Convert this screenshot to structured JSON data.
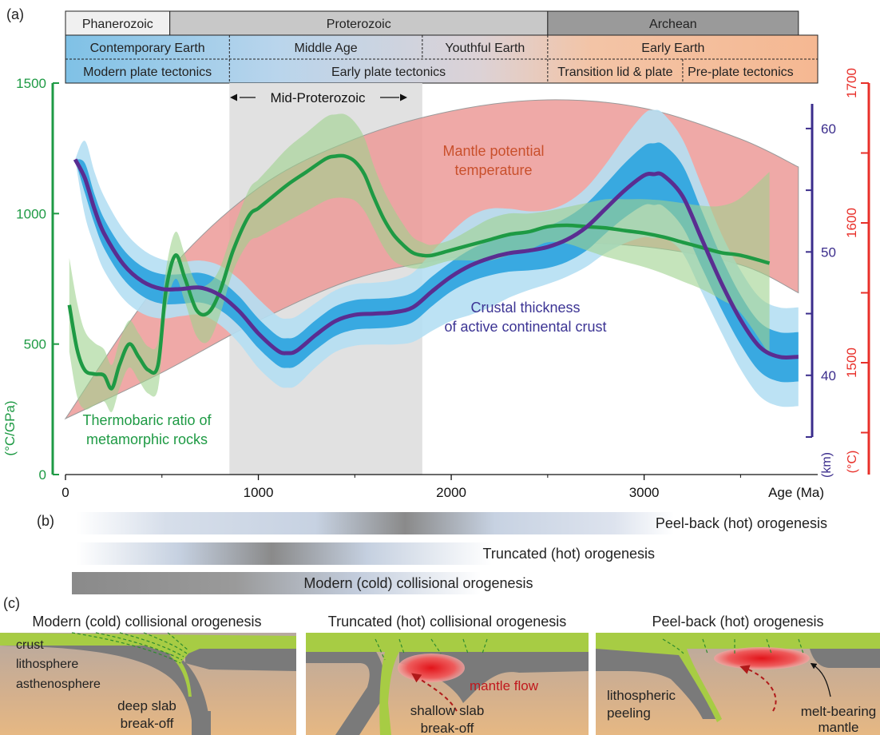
{
  "panel_labels": {
    "a": "(a)",
    "b": "(b)",
    "c": "(c)"
  },
  "colors": {
    "green": "#1e9a44",
    "green_band": "#9fd28e",
    "purple": "#5a2d91",
    "blue": "#2aa3df",
    "blue_light": "#b5dff3",
    "red_band": "#ec9a98",
    "red_axis": "#e8302a",
    "navy_axis": "#3b2d8c",
    "highlight": "#e1e1e1",
    "text_orange": "#c9502c",
    "text_blue": "#3c3494"
  },
  "eons": [
    {
      "name": "Phanerozoic",
      "start": 0,
      "end": 541
    },
    {
      "name": "Proterozoic",
      "start": 541,
      "end": 2500
    },
    {
      "name": "Archean",
      "start": 2500,
      "end": 3800
    }
  ],
  "eras": [
    {
      "name": "Contemporary Earth",
      "start": 0,
      "end": 850
    },
    {
      "name": "Middle Age",
      "start": 850,
      "end": 1850
    },
    {
      "name": "Youthful Earth",
      "start": 1850,
      "end": 2500
    },
    {
      "name": "Early Earth",
      "start": 2500,
      "end": 3800
    }
  ],
  "regimes": [
    {
      "name": "Modern plate tectonics",
      "start": 0,
      "end": 850
    },
    {
      "name": "Early plate tectonics",
      "start": 850,
      "end": 2500
    },
    {
      "name": "Transition lid & plate",
      "start": 2500,
      "end": 3200
    },
    {
      "name": "Pre-plate tectonics",
      "start": 3200,
      "end": 3800
    }
  ],
  "mid_proterozoic_label": "Mid-Proterozoic",
  "annotations": {
    "mantle_line1": "Mantle potential",
    "mantle_line2": "temperature",
    "crust_line1": "Crustal thickness",
    "crust_line2": "of active continental crust",
    "thermo_line1": "Thermobaric ratio of",
    "thermo_line2": "metamorphic rocks"
  },
  "orogenesis_bars": [
    {
      "label": "Peel-back (hot) orogenesis"
    },
    {
      "label": "Truncated (hot) orogenesis"
    },
    {
      "label": "Modern (cold) collisional orogenesis"
    }
  ],
  "panel_c": {
    "titles": [
      "Modern (cold) collisional orogenesis",
      "Truncated (hot) collisional orogenesis",
      "Peel-back (hot) orogenesis"
    ],
    "labels": {
      "crust": "crust",
      "lithosphere": "lithosphere",
      "asthenosphere": "asthenosphere",
      "deep_slab_1": "deep slab",
      "deep_slab_2": "break-off",
      "mantle_flow": "mantle flow",
      "shallow_slab_1": "shallow slab",
      "shallow_slab_2": "break-off",
      "litho_peel_1": "lithospheric",
      "litho_peel_2": "peeling",
      "melt_1": "melt-bearing",
      "melt_2": "mantle"
    }
  },
  "chart_data": {
    "type": "line",
    "x_axis": {
      "label": "Age (Ma)",
      "range": [
        0,
        3900
      ],
      "ticks": [
        0,
        1000,
        2000,
        3000
      ]
    },
    "left_axis": {
      "label": "(°C/GPa)",
      "range": [
        0,
        1500
      ],
      "ticks": [
        0,
        500,
        1000,
        1500
      ]
    },
    "km_axis": {
      "label": "(km)",
      "range": [
        30,
        64
      ],
      "ticks": [
        40,
        50,
        60
      ]
    },
    "temp_axis": {
      "label": "(°C)",
      "range": [
        1420,
        1700
      ],
      "ticks": [
        1500,
        1600,
        1700
      ]
    },
    "mid_proterozoic_range": [
      850,
      1850
    ],
    "series": [
      {
        "name": "Thermobaric ratio of metamorphic rocks",
        "axis": "left",
        "x": [
          20,
          60,
          100,
          150,
          200,
          240,
          280,
          330,
          380,
          430,
          480,
          520,
          570,
          620,
          680,
          740,
          800,
          870,
          950,
          1000,
          1050,
          1150,
          1250,
          1350,
          1400,
          1450,
          1500,
          1550,
          1600,
          1650,
          1700,
          1750,
          1800,
          1850,
          1900,
          2000,
          2100,
          2200,
          2300,
          2400,
          2500,
          2600,
          2700,
          2800,
          2900,
          3000,
          3100,
          3200,
          3300,
          3400,
          3500,
          3650
        ],
        "y": [
          650,
          480,
          400,
          385,
          380,
          330,
          420,
          500,
          450,
          400,
          420,
          700,
          840,
          750,
          630,
          620,
          700,
          860,
          990,
          1020,
          1050,
          1110,
          1160,
          1210,
          1220,
          1220,
          1200,
          1150,
          1060,
          980,
          920,
          880,
          850,
          840,
          840,
          860,
          880,
          900,
          920,
          930,
          950,
          955,
          950,
          945,
          935,
          925,
          910,
          890,
          870,
          850,
          840,
          810
        ],
        "band_half_width": [
          180,
          180,
          150,
          120,
          100,
          90,
          90,
          90,
          90,
          90,
          90,
          80,
          90,
          90,
          100,
          110,
          90,
          80,
          100,
          110,
          120,
          140,
          150,
          160,
          160,
          160,
          150,
          140,
          120,
          110,
          100,
          80,
          60,
          50,
          40,
          40,
          60,
          80,
          80,
          70,
          60,
          70,
          90,
          110,
          120,
          130,
          140,
          150,
          160,
          180,
          220,
          350
        ]
      },
      {
        "name": "Crustal thickness of active continental crust",
        "axis": "km",
        "x": [
          50,
          100,
          150,
          200,
          300,
          400,
          500,
          600,
          700,
          800,
          900,
          1000,
          1100,
          1150,
          1200,
          1300,
          1400,
          1500,
          1600,
          1700,
          1800,
          1900,
          2000,
          2100,
          2200,
          2300,
          2400,
          2500,
          2600,
          2700,
          2800,
          2900,
          3000,
          3050,
          3100,
          3200,
          3300,
          3400,
          3500,
          3600,
          3700,
          3800
        ],
        "y": [
          57.5,
          56,
          53.5,
          51.5,
          49,
          47.6,
          47,
          47,
          47.1,
          46.5,
          45.2,
          43.4,
          42,
          41.8,
          42,
          43.3,
          44.4,
          44.9,
          45,
          45.1,
          45.5,
          46.8,
          48,
          48.9,
          49.5,
          49.9,
          50.1,
          50.4,
          51,
          52,
          53.5,
          55,
          56.2,
          56.3,
          56.2,
          54.5,
          51,
          47.5,
          44.5,
          42.3,
          41.5,
          41.5
        ],
        "inner_half_width": [
          0,
          1.2,
          1.2,
          1.2,
          1.2,
          1.2,
          1.2,
          1.2,
          1.2,
          1.2,
          1.2,
          1.2,
          1.2,
          1.2,
          1.2,
          1.2,
          1.2,
          1.2,
          1.2,
          1.2,
          1.2,
          1.2,
          1.2,
          1.3,
          1.4,
          1.5,
          1.6,
          1.7,
          1.8,
          1.9,
          2.0,
          2.2,
          2.4,
          2.5,
          2.5,
          2.5,
          2.3,
          2.1,
          2.0,
          2.0,
          2.0,
          2.0
        ],
        "outer_half_width": [
          0,
          3,
          3,
          3,
          2.8,
          2.6,
          2.4,
          2.2,
          2.2,
          2.4,
          2.6,
          2.8,
          2.8,
          2.8,
          2.8,
          2.6,
          2.5,
          2.5,
          2.5,
          2.6,
          2.8,
          3.2,
          3.6,
          4.0,
          4.0,
          3.6,
          3.2,
          3.0,
          3.0,
          3.2,
          3.6,
          4.3,
          5.0,
          5.2,
          5.0,
          4.6,
          4.3,
          4.0,
          4.0,
          4.0,
          4.0,
          4.0
        ]
      },
      {
        "name": "Mantle potential temperature",
        "axis": "temp",
        "x": [
          0,
          500,
          1000,
          1500,
          2000,
          2500,
          3000,
          3500,
          3800
        ],
        "upper": [
          1460,
          1560,
          1625,
          1660,
          1680,
          1688,
          1682,
          1660,
          1640
        ],
        "lower": [
          1460,
          1493,
          1530,
          1560,
          1575,
          1585,
          1583,
          1570,
          1550
        ]
      }
    ]
  }
}
